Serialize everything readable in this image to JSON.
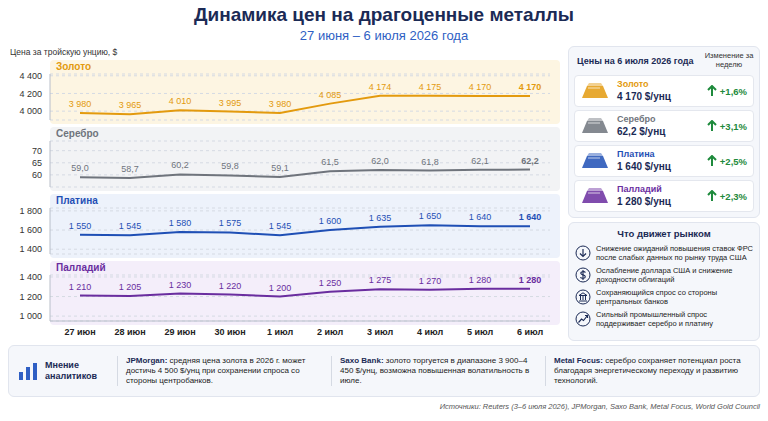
{
  "title": "Динамика цен на драгоценные металлы",
  "subtitle": "27 июня – 6 июля 2026 года",
  "y_axis_label": "Цена за тройскую унцию, $",
  "chart_data": [
    {
      "type": "line",
      "title": "Золото",
      "color": "#e39a0e",
      "categories": [
        "27 июн",
        "28 июн",
        "29 июн",
        "30 июн",
        "1 июл",
        "2 июл",
        "3 июл",
        "4 июл",
        "5 июл",
        "6 июл"
      ],
      "values": [
        3980,
        3965,
        4010,
        3995,
        3980,
        4085,
        4174,
        4175,
        4170,
        4170
      ],
      "value_labels": [
        "3 980",
        "3 965",
        "4 010",
        "3 995",
        "3 980",
        "4 085",
        "4 174",
        "4 175",
        "4 170",
        "4 170"
      ],
      "ylim": [
        3900,
        4420
      ],
      "yticks": [
        {
          "value": 4000,
          "label": "4 000"
        },
        {
          "value": 4200,
          "label": "4 200"
        },
        {
          "value": 4400,
          "label": "4 400"
        }
      ],
      "grid": true,
      "data_labels": true,
      "tick_labels": "y"
    },
    {
      "type": "line",
      "title": "Серебро",
      "color": "#6f747c",
      "categories": [
        "27 июн",
        "28 июн",
        "29 июн",
        "30 июн",
        "1 июл",
        "2 июл",
        "3 июл",
        "4 июл",
        "5 июл",
        "6 июл"
      ],
      "values": [
        59.0,
        58.7,
        60.2,
        59.8,
        59.1,
        61.5,
        62.0,
        61.8,
        62.1,
        62.2
      ],
      "value_labels": [
        "59,0",
        "58,7",
        "60,2",
        "59,8",
        "59,1",
        "61,5",
        "62,0",
        "61,8",
        "62,1",
        "62,2"
      ],
      "ylim": [
        55,
        74
      ],
      "yticks": [
        60,
        65,
        70
      ],
      "grid": true,
      "data_labels": true,
      "tick_labels": "y"
    },
    {
      "type": "line",
      "title": "Платина",
      "color": "#1f4fb5",
      "categories": [
        "27 июн",
        "28 июн",
        "29 июн",
        "30 июн",
        "1 июл",
        "2 июл",
        "3 июл",
        "4 июл",
        "5 июл",
        "6 июл"
      ],
      "values": [
        1550,
        1545,
        1580,
        1575,
        1545,
        1600,
        1635,
        1650,
        1640,
        1640
      ],
      "value_labels": [
        "1 550",
        "1 545",
        "1 580",
        "1 575",
        "1 545",
        "1 600",
        "1 635",
        "1 650",
        "1 640",
        "1 640"
      ],
      "ylim": [
        1350,
        1830
      ],
      "yticks": [
        {
          "value": 1400,
          "label": "1 400"
        },
        {
          "value": 1600,
          "label": "1 600"
        },
        {
          "value": 1800,
          "label": "1 800"
        }
      ],
      "grid": true,
      "data_labels": true,
      "tick_labels": "y"
    },
    {
      "type": "line",
      "title": "Палладий",
      "color": "#6a2d9f",
      "categories": [
        "27 июн",
        "28 июн",
        "29 июн",
        "30 июн",
        "1 июл",
        "2 июл",
        "3 июл",
        "4 июл",
        "5 июл",
        "6 июл"
      ],
      "values": [
        1210,
        1205,
        1230,
        1220,
        1200,
        1250,
        1275,
        1270,
        1280,
        1280
      ],
      "value_labels": [
        "1 210",
        "1 205",
        "1 230",
        "1 220",
        "1 200",
        "1 250",
        "1 275",
        "1 270",
        "1 280",
        "1 280"
      ],
      "ylim": [
        950,
        1420
      ],
      "yticks": [
        {
          "value": 1000,
          "label": "1 000"
        },
        {
          "value": 1200,
          "label": "1 200"
        },
        {
          "value": 1400,
          "label": "1 400"
        }
      ],
      "grid": true,
      "data_labels": true
    }
  ],
  "price_panel": {
    "title": "Цены на 6 июля 2026 года",
    "change_header": "Изменение за неделю",
    "rows": [
      {
        "name": "Золото",
        "price": "4 170 $/унц",
        "change": "+1,6%"
      },
      {
        "name": "Серебро",
        "price": "62,2 $/унц",
        "change": "+3,1%"
      },
      {
        "name": "Платина",
        "price": "1 640 $/унц",
        "change": "+2,5%"
      },
      {
        "name": "Палладий",
        "price": "1 280 $/унц",
        "change": "+2,3%"
      }
    ]
  },
  "drivers": {
    "title": "Что движет рынком",
    "items": [
      "Снижение ожиданий повышения ставок ФРС после слабых данных по рынку труда США",
      "Ослабление доллара США и снижение доходности облигаций",
      "Сохраняющийся спрос со стороны центральных банков",
      "Сильный промышленный спрос поддерживает серебро и платину"
    ]
  },
  "analysts": {
    "title": "Мнение аналитиков",
    "items": [
      {
        "source": "JPMorgan:",
        "text": "средняя цена золота в 2026 г. может достичь 4 500 $/унц при сохранении спроса со стороны центробанков."
      },
      {
        "source": "Saxo Bank:",
        "text": "золото торгуется в диапазоне 3 900–4 450 $/унц, возможна повышенная волатильность в июле."
      },
      {
        "source": "Metal Focus:",
        "text": "серебро сохраняет потенциал роста благодаря энергетическому переходу и развитию технологий."
      }
    ]
  },
  "sources": "Источники: Reuters (3–6 июля 2026), JPMorgan, Saxo Bank, Metal Focus, World Gold Council"
}
